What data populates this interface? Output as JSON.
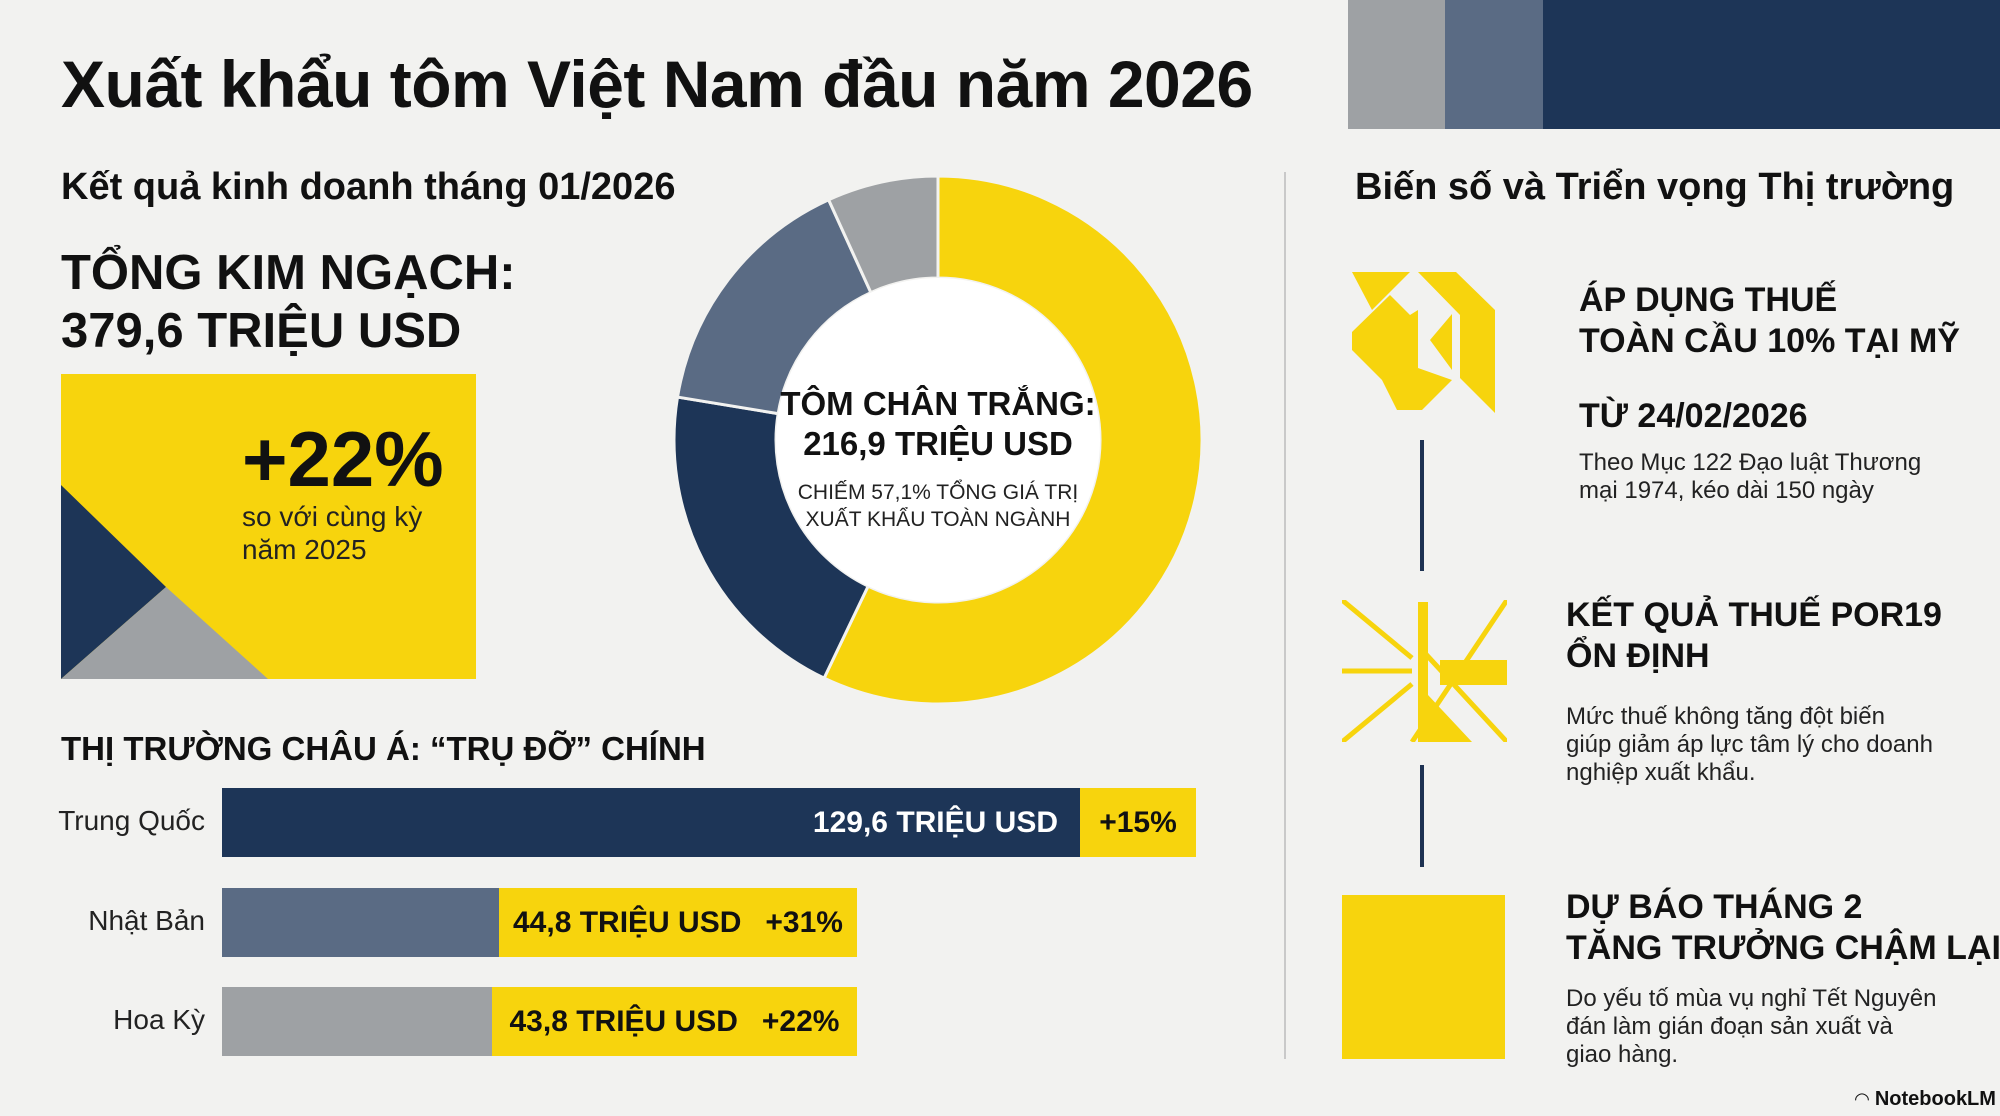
{
  "title": "Xuất khẩu tôm Việt Nam đầu năm 2026",
  "colors": {
    "yellow": "#f7d40d",
    "navy": "#1d3557",
    "slate": "#5a6b84",
    "gray": "#9ea1a4",
    "background": "#f2f2f0"
  },
  "left": {
    "subtitle": "Kết quả kinh doanh tháng 01/2026",
    "total_label": "TỔNG KIM NGẠCH:",
    "total_value": "379,6 TRIỆU USD",
    "growth_value": "+22%",
    "growth_line1": "so với cùng kỳ",
    "growth_line2": "năm 2025"
  },
  "chart_data": {
    "type": "pie",
    "donut": true,
    "slices": [
      {
        "share": 57.1,
        "color": "#f7d40d"
      },
      {
        "share": 20.5,
        "color": "#1d3557"
      },
      {
        "share": 15.6,
        "color": "#5a6b84"
      },
      {
        "share": 6.8,
        "color": "#9ea1a4"
      }
    ],
    "center_title": "TÔM CHÂN TRẮNG:",
    "center_value": "216,9 TRIỆU USD",
    "center_note1": "CHIẾM 57,1% TỔNG GIÁ TRỊ",
    "center_note2": "XUẤT KHẨU TOÀN NGÀNH"
  },
  "asia": {
    "heading": "THỊ TRƯỜNG CHÂU Á: “TRỤ ĐỠ” CHÍNH",
    "rows": [
      {
        "market": "Trung Quốc",
        "value": "129,6 TRIỆU USD",
        "growth": "+15%"
      },
      {
        "market": "Nhật Bản",
        "value": "44,8 TRIỆU USD",
        "growth": "+31%"
      },
      {
        "market": "Hoa Kỳ",
        "value": "43,8 TRIỆU USD",
        "growth": "+22%"
      }
    ]
  },
  "right": {
    "heading": "Biến số và Triển vọng Thị trường",
    "items": [
      {
        "title1": "ÁP DỤNG THUẾ",
        "title2": "TOÀN CẦU 10% TẠI MỸ",
        "title3": "TỪ 24/02/2026",
        "body1": "Theo Mục 122 Đạo luật Thương",
        "body2": "mại 1974, kéo dài 150 ngày",
        "icon": "geometric-tangram-icon"
      },
      {
        "title1": "KẾT QUẢ THUẾ POR19",
        "title2": "ỔN ĐỊNH",
        "body1": "Mức thuế không tăng đột biến",
        "body2": "giúp giảm áp lực tâm lý cho doanh",
        "body3": "nghiệp xuất khẩu.",
        "icon": "converging-lines-icon"
      },
      {
        "title1": "DỰ BÁO THÁNG 2",
        "title2": "TĂNG TRƯỞNG CHẬM LẠI",
        "body1": "Do yếu tố mùa vụ nghỉ Tết Nguyên",
        "body2": "đán làm gián đoạn sản xuất và",
        "body3": "giao hàng.",
        "icon": "yellow-square-icon"
      }
    ]
  },
  "footer": {
    "brand": "NotebookLM"
  }
}
